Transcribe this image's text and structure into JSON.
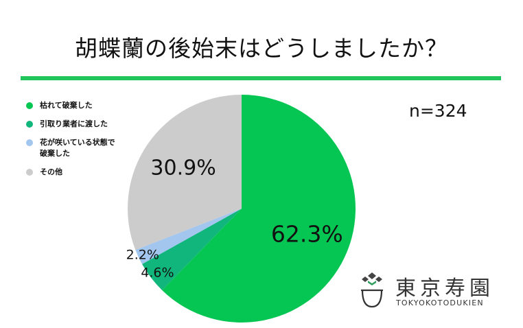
{
  "title": "胡蝶蘭の後始末はどうしましたか？",
  "sample_size": "n=324",
  "colors": {
    "accent": "#1fc45a"
  },
  "chart_data": {
    "type": "pie",
    "title": "胡蝶蘭の後始末はどうしましたか？",
    "start_angle_deg": 0,
    "direction": "clockwise",
    "legend_position": "left",
    "slices": [
      {
        "label": "枯れて破棄した",
        "value": 62.3,
        "display": "62.3%",
        "color": "#06c653"
      },
      {
        "label": "引取り業者に渡した",
        "value": 4.6,
        "display": "4.6%",
        "color": "#10b67b"
      },
      {
        "label": "花が咲いている状態で破棄した",
        "value": 2.2,
        "display": "2.2%",
        "color": "#a2c6ee"
      },
      {
        "label": "その他",
        "value": 30.9,
        "display": "30.9%",
        "color": "#cccccc"
      }
    ]
  },
  "logo": {
    "icon": "tea-bowl-logo-icon",
    "kanji": "東京寿園",
    "roman": "TOKYOKOTODUKIEN"
  }
}
